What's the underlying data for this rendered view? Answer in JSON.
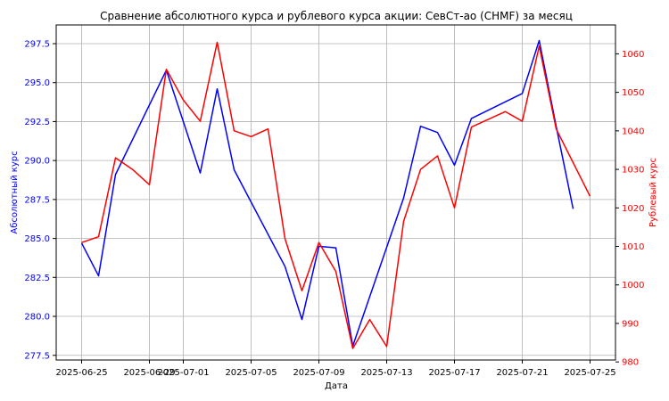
{
  "chart_data": {
    "type": "line",
    "title": "Сравнение абсолютного курса и рублевого курса акции: СевСт-ао (CHMF) за месяц",
    "xlabel": "Дата",
    "ylabel_left": "Абсолютный курс",
    "ylabel_right": "Рублевый курс",
    "grid": true,
    "x_ticks": [
      "2025-06-25",
      "2025-06-29",
      "2025-07-01",
      "2025-07-05",
      "2025-07-09",
      "2025-07-13",
      "2025-07-17",
      "2025-07-21",
      "2025-07-25"
    ],
    "x_range": [
      "2025-06-25",
      "2025-07-25"
    ],
    "y_left": {
      "ylim": [
        277.2,
        298.7
      ],
      "ticks": [
        "277.5",
        "280.0",
        "282.5",
        "285.0",
        "287.5",
        "290.0",
        "292.5",
        "295.0",
        "297.5"
      ],
      "color": "#0000ff"
    },
    "y_right": {
      "ylim": [
        980.5,
        1067.5
      ],
      "ticks": [
        "980",
        "990",
        "1000",
        "1010",
        "1020",
        "1030",
        "1040",
        "1050",
        "1060"
      ],
      "color": "#ff0000"
    },
    "series": [
      {
        "axis": "left",
        "color": "#0000ff",
        "points": [
          [
            "2025-06-25",
            284.7
          ],
          [
            "2025-06-26",
            282.6
          ],
          [
            "2025-06-27",
            289.1
          ],
          [
            "2025-06-30",
            295.8
          ],
          [
            "2025-07-02",
            289.2
          ],
          [
            "2025-07-03",
            294.6
          ],
          [
            "2025-07-04",
            289.4
          ],
          [
            "2025-07-07",
            283.2
          ],
          [
            "2025-07-08",
            279.8
          ],
          [
            "2025-07-09",
            284.5
          ],
          [
            "2025-07-10",
            284.4
          ],
          [
            "2025-07-11",
            278.1
          ],
          [
            "2025-07-14",
            287.6
          ],
          [
            "2025-07-15",
            292.2
          ],
          [
            "2025-07-16",
            291.8
          ],
          [
            "2025-07-17",
            289.7
          ],
          [
            "2025-07-18",
            292.7
          ],
          [
            "2025-07-21",
            294.3
          ],
          [
            "2025-07-22",
            297.7
          ],
          [
            "2025-07-23",
            292.2
          ],
          [
            "2025-07-24",
            286.9
          ]
        ]
      },
      {
        "axis": "right",
        "color": "#ff0000",
        "points": [
          [
            "2025-06-25",
            1011.0
          ],
          [
            "2025-06-26",
            1012.5
          ],
          [
            "2025-06-27",
            1033.0
          ],
          [
            "2025-06-28",
            1030.0
          ],
          [
            "2025-06-29",
            1026.0
          ],
          [
            "2025-06-30",
            1056.0
          ],
          [
            "2025-07-01",
            1048.0
          ],
          [
            "2025-07-02",
            1042.5
          ],
          [
            "2025-07-03",
            1063.0
          ],
          [
            "2025-07-04",
            1040.0
          ],
          [
            "2025-07-05",
            1038.5
          ],
          [
            "2025-07-06",
            1040.5
          ],
          [
            "2025-07-07",
            1012.0
          ],
          [
            "2025-07-08",
            998.5
          ],
          [
            "2025-07-09",
            1011.0
          ],
          [
            "2025-07-10",
            1003.5
          ],
          [
            "2025-07-11",
            983.5
          ],
          [
            "2025-07-12",
            991.0
          ],
          [
            "2025-07-13",
            984.0
          ],
          [
            "2025-07-14",
            1016.5
          ],
          [
            "2025-07-15",
            1030.0
          ],
          [
            "2025-07-16",
            1033.5
          ],
          [
            "2025-07-17",
            1020.0
          ],
          [
            "2025-07-18",
            1041.0
          ],
          [
            "2025-07-20",
            1045.0
          ],
          [
            "2025-07-21",
            1042.5
          ],
          [
            "2025-07-22",
            1062.0
          ],
          [
            "2025-07-23",
            1040.5
          ],
          [
            "2025-07-25",
            1023.0
          ]
        ]
      }
    ]
  }
}
